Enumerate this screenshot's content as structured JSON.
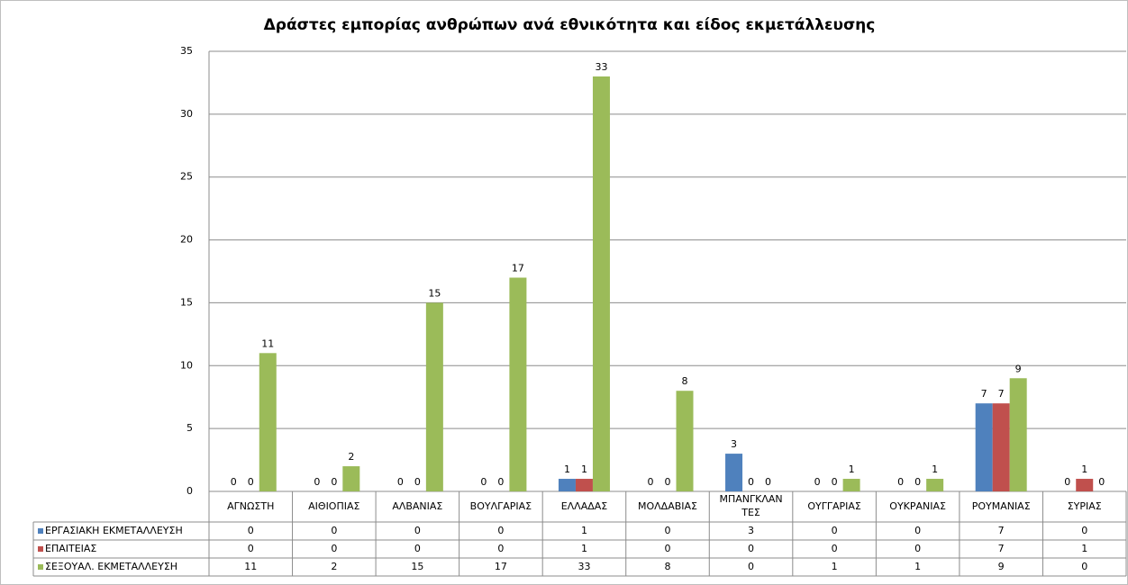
{
  "chart_data": {
    "type": "bar",
    "title": "Δράστες εμπορίας ανθρώπων ανά εθνικότητα και είδος εκμετάλλευσης",
    "categories": [
      "ΑΓΝΩΣΤΗ",
      "ΑΙΘΙΟΠΙΑΣ",
      "ΑΛΒΑΝΙΑΣ",
      "ΒΟΥΛΓΑΡΙΑΣ",
      "ΕΛΛΑΔΑΣ",
      "ΜΟΛΔΑΒΙΑΣ",
      "ΜΠΑΝΓΚΛΑΝΤΕΣ",
      "ΟΥΓΓΑΡΙΑΣ",
      "ΟΥΚΡΑΝΙΑΣ",
      "ΡΟΥΜΑΝΙΑΣ",
      "ΣΥΡΙΑΣ"
    ],
    "series": [
      {
        "name": "ΕΡΓΑΣΙΑΚΗ ΕΚΜΕΤΑΛΛΕΥΣΗ",
        "color": "#4f81bd",
        "values": [
          0,
          0,
          0,
          0,
          1,
          0,
          3,
          0,
          0,
          7,
          0
        ]
      },
      {
        "name": "ΕΠΑΙΤΕΙΑΣ",
        "color": "#c0504d",
        "values": [
          0,
          0,
          0,
          0,
          1,
          0,
          0,
          0,
          0,
          7,
          1
        ]
      },
      {
        "name": "ΣΕΞΟΥΑΛ. ΕΚΜΕΤΑΛΛΕΥΣΗ",
        "color": "#9bbb59",
        "values": [
          11,
          2,
          15,
          17,
          33,
          8,
          0,
          1,
          1,
          9,
          0
        ]
      }
    ],
    "ylim": [
      0,
      35
    ],
    "yticks": [
      0,
      5,
      10,
      15,
      20,
      25,
      30,
      35
    ],
    "grid": true
  }
}
